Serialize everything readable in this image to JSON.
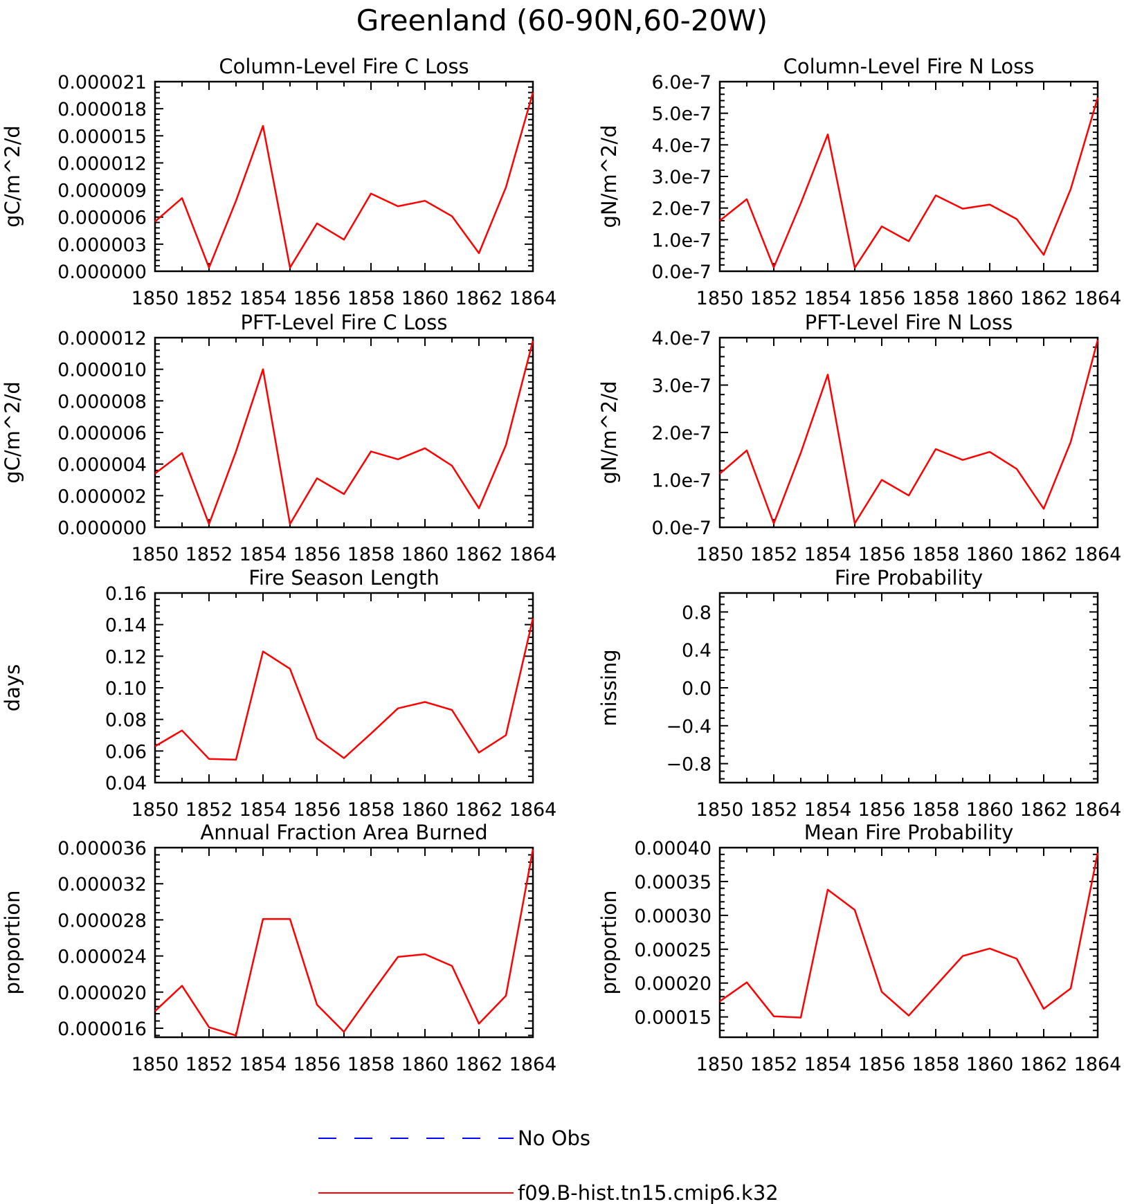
{
  "figure": {
    "title": "Greenland (60-90N,60-20W)"
  },
  "legend": {
    "entries": [
      {
        "label": "No Obs",
        "color": "#0000ff",
        "style": "dashed"
      },
      {
        "label": "f09.B-hist.tn15.cmip6.k32",
        "color": "#ff0000",
        "style": "solid"
      }
    ]
  },
  "chart_data": [
    {
      "id": "col-fire-c",
      "type": "line",
      "title": "Column-Level Fire C Loss",
      "ylabel": "gC/m^2/d",
      "xlim": [
        1850,
        1864
      ],
      "xticks": [
        1850,
        1852,
        1854,
        1856,
        1858,
        1860,
        1862,
        1864
      ],
      "ylim": [
        0,
        2.1e-05
      ],
      "yticks": [
        "0.000000",
        "0.000003",
        "0.000006",
        "0.000009",
        "0.000012",
        "0.000015",
        "0.000018",
        "0.000021"
      ],
      "x": [
        1850,
        1851,
        1852,
        1853,
        1854,
        1855,
        1856,
        1857,
        1858,
        1859,
        1860,
        1861,
        1862,
        1863,
        1864
      ],
      "series": [
        {
          "color": "#ff0000",
          "values": [
            5.5e-06,
            8.1e-06,
            4e-07,
            7.8e-06,
            1.61e-05,
            4e-07,
            5.3e-06,
            3.5e-06,
            8.6e-06,
            7.2e-06,
            7.8e-06,
            6.1e-06,
            2e-06,
            9.3e-06,
            1.98e-05
          ]
        }
      ]
    },
    {
      "id": "col-fire-n",
      "type": "line",
      "title": "Column-Level Fire N Loss",
      "ylabel": "gN/m^2/d",
      "xlim": [
        1850,
        1864
      ],
      "xticks": [
        1850,
        1852,
        1854,
        1856,
        1858,
        1860,
        1862,
        1864
      ],
      "ylim": [
        0,
        6e-07
      ],
      "yticks": [
        "0.0e-7",
        "1.0e-7",
        "2.0e-7",
        "3.0e-7",
        "4.0e-7",
        "5.0e-7",
        "6.0e-7"
      ],
      "x": [
        1850,
        1851,
        1852,
        1853,
        1854,
        1855,
        1856,
        1857,
        1858,
        1859,
        1860,
        1861,
        1862,
        1863,
        1864
      ],
      "series": [
        {
          "color": "#ff0000",
          "values": [
            1.6e-07,
            2.28e-07,
            1.2e-08,
            2.15e-07,
            4.33e-07,
            1.1e-08,
            1.42e-07,
            9.5e-08,
            2.4e-07,
            1.98e-07,
            2.11e-07,
            1.65e-07,
            5.2e-08,
            2.6e-07,
            5.49e-07
          ]
        }
      ]
    },
    {
      "id": "pft-fire-c",
      "type": "line",
      "title": "PFT-Level Fire C Loss",
      "ylabel": "gC/m^2/d",
      "xlim": [
        1850,
        1864
      ],
      "xticks": [
        1850,
        1852,
        1854,
        1856,
        1858,
        1860,
        1862,
        1864
      ],
      "ylim": [
        0,
        1.2e-05
      ],
      "yticks": [
        "0.000000",
        "0.000002",
        "0.000004",
        "0.000006",
        "0.000008",
        "0.000010",
        "0.000012"
      ],
      "x": [
        1850,
        1851,
        1852,
        1853,
        1854,
        1855,
        1856,
        1857,
        1858,
        1859,
        1860,
        1861,
        1862,
        1863,
        1864
      ],
      "series": [
        {
          "color": "#ff0000",
          "values": [
            3.4e-06,
            4.7e-06,
            2e-07,
            4.8e-06,
            1e-05,
            2e-07,
            3.1e-06,
            2.1e-06,
            4.8e-06,
            4.3e-06,
            5e-06,
            3.9e-06,
            1.2e-06,
            5.2e-06,
            1.18e-05
          ]
        }
      ]
    },
    {
      "id": "pft-fire-n",
      "type": "line",
      "title": "PFT-Level Fire N Loss",
      "ylabel": "gN/m^2/d",
      "xlim": [
        1850,
        1864
      ],
      "xticks": [
        1850,
        1852,
        1854,
        1856,
        1858,
        1860,
        1862,
        1864
      ],
      "ylim": [
        0,
        4e-07
      ],
      "yticks": [
        "0.0e-7",
        "1.0e-7",
        "2.0e-7",
        "3.0e-7",
        "4.0e-7"
      ],
      "x": [
        1850,
        1851,
        1852,
        1853,
        1854,
        1855,
        1856,
        1857,
        1858,
        1859,
        1860,
        1861,
        1862,
        1863,
        1864
      ],
      "series": [
        {
          "color": "#ff0000",
          "values": [
            1.13e-07,
            1.62e-07,
            8e-09,
            1.57e-07,
            3.22e-07,
            8e-09,
            1e-07,
            6.7e-08,
            1.65e-07,
            1.42e-07,
            1.59e-07,
            1.23e-07,
            3.9e-08,
            1.8e-07,
            3.95e-07
          ]
        }
      ]
    },
    {
      "id": "fire-season-length",
      "type": "line",
      "title": "Fire Season Length",
      "ylabel": "days",
      "xlim": [
        1850,
        1864
      ],
      "xticks": [
        1850,
        1852,
        1854,
        1856,
        1858,
        1860,
        1862,
        1864
      ],
      "ylim": [
        0.04,
        0.16
      ],
      "yticks": [
        "0.04",
        "0.06",
        "0.08",
        "0.10",
        "0.12",
        "0.14",
        "0.16"
      ],
      "x": [
        1850,
        1851,
        1852,
        1853,
        1854,
        1855,
        1856,
        1857,
        1858,
        1859,
        1860,
        1861,
        1862,
        1863,
        1864
      ],
      "series": [
        {
          "color": "#ff0000",
          "values": [
            0.063,
            0.073,
            0.055,
            0.0545,
            0.123,
            0.112,
            0.068,
            0.0555,
            0.071,
            0.087,
            0.091,
            0.086,
            0.059,
            0.07,
            0.144
          ]
        }
      ]
    },
    {
      "id": "fire-probability",
      "type": "line",
      "title": "Fire Probability",
      "ylabel": "missing",
      "xlim": [
        1850,
        1864
      ],
      "xticks": [
        1850,
        1852,
        1854,
        1856,
        1858,
        1860,
        1862,
        1864
      ],
      "ylim": [
        -1.0,
        1.0
      ],
      "yticks": [
        "−0.8",
        "−0.4",
        "0.0",
        "0.4",
        "0.8"
      ],
      "x": [],
      "series": []
    },
    {
      "id": "annual-fraction-area-burned",
      "type": "line",
      "title": "Annual Fraction Area Burned",
      "ylabel": "proportion",
      "xlim": [
        1850,
        1864
      ],
      "xticks": [
        1850,
        1852,
        1854,
        1856,
        1858,
        1860,
        1862,
        1864
      ],
      "ylim": [
        1.5e-05,
        3.6e-05
      ],
      "yticks": [
        "0.000016",
        "0.000020",
        "0.000024",
        "0.000028",
        "0.000032",
        "0.000036"
      ],
      "x": [
        1850,
        1851,
        1852,
        1853,
        1854,
        1855,
        1856,
        1857,
        1858,
        1859,
        1860,
        1861,
        1862,
        1863,
        1864
      ],
      "series": [
        {
          "color": "#ff0000",
          "values": [
            1.79e-05,
            2.07e-05,
            1.61e-05,
            1.52e-05,
            2.81e-05,
            2.81e-05,
            1.86e-05,
            1.56e-05,
            1.98e-05,
            2.39e-05,
            2.42e-05,
            2.29e-05,
            1.65e-05,
            1.96e-05,
            3.58e-05
          ]
        }
      ]
    },
    {
      "id": "mean-fire-probability",
      "type": "line",
      "title": "Mean Fire Probability",
      "ylabel": "proportion",
      "xlim": [
        1850,
        1864
      ],
      "xticks": [
        1850,
        1852,
        1854,
        1856,
        1858,
        1860,
        1862,
        1864
      ],
      "ylim": [
        0.00012,
        0.0004
      ],
      "yticks": [
        "0.00015",
        "0.00020",
        "0.00025",
        "0.00030",
        "0.00035",
        "0.00040"
      ],
      "x": [
        1850,
        1851,
        1852,
        1853,
        1854,
        1855,
        1856,
        1857,
        1858,
        1859,
        1860,
        1861,
        1862,
        1863,
        1864
      ],
      "series": [
        {
          "color": "#ff0000",
          "values": [
            0.000173,
            0.000201,
            0.000151,
            0.000149,
            0.000338,
            0.000308,
            0.000187,
            0.000152,
            0.000196,
            0.00024,
            0.000251,
            0.000236,
            0.000162,
            0.000192,
            0.000392
          ]
        }
      ]
    }
  ]
}
